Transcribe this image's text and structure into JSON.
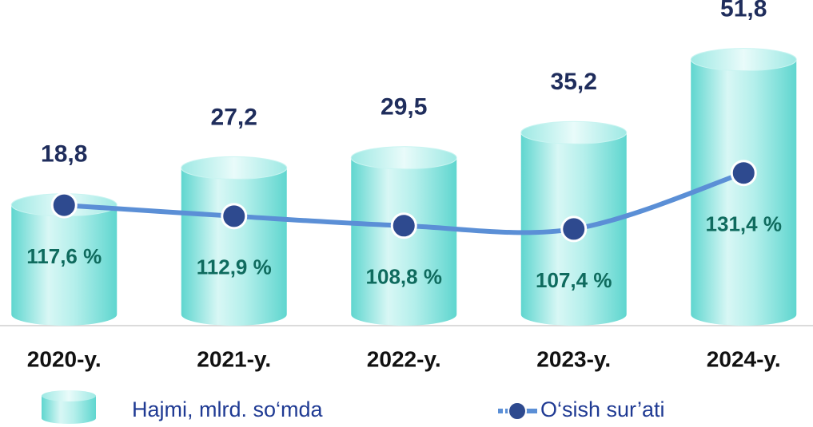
{
  "chart_data": {
    "type": "bar",
    "categories": [
      "2020-y.",
      "2021-y.",
      "2022-y.",
      "2023-y.",
      "2024-y."
    ],
    "series": [
      {
        "name": "Hajmi, mlrd. so‘mda",
        "type": "bar",
        "color": "#7fe3dd",
        "values": [
          18.8,
          27.2,
          29.5,
          35.2,
          51.8
        ],
        "value_labels": [
          "18,8",
          "27,2",
          "29,5",
          "35,2",
          "51,8"
        ]
      },
      {
        "name": "O‘sish sur’ati",
        "type": "line",
        "axis": "y2",
        "color": "#5b8fd6",
        "values": [
          117.6,
          112.9,
          108.8,
          107.4,
          131.4
        ],
        "value_labels": [
          "117,6 %",
          "112,9 %",
          "108,8 %",
          "107,4 %",
          "131,4 %"
        ]
      }
    ],
    "ylim": [
      -8.6,
      55
    ],
    "y2lim": [
      66,
      186
    ],
    "legend": "bottom"
  }
}
